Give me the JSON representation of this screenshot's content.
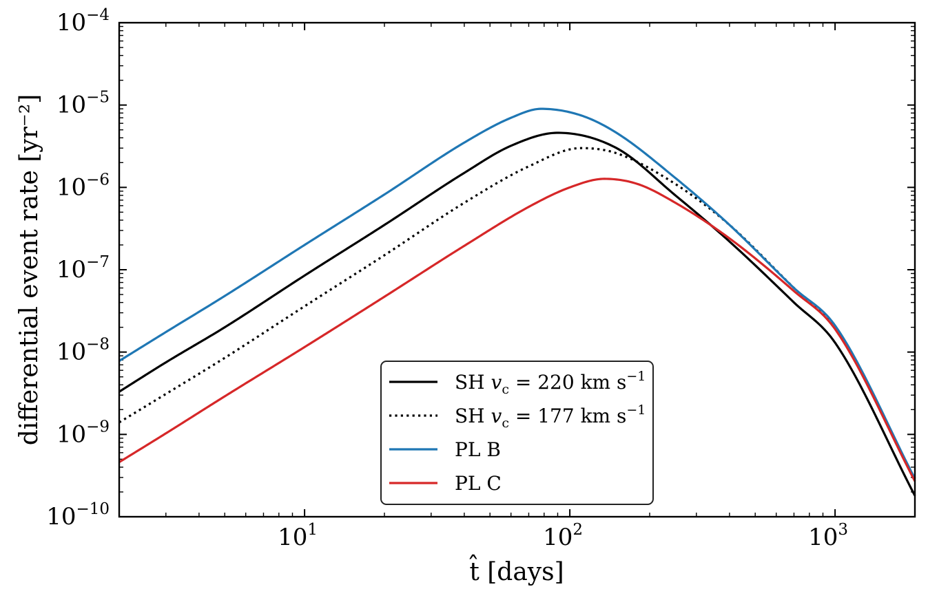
{
  "chart_data": {
    "type": "line",
    "title": "",
    "xlabel": "t̂ [days]",
    "ylabel": "differential event rate [yr⁻²]",
    "x_scale": "log",
    "y_scale": "log",
    "xlim": [
      2,
      2000
    ],
    "ylim": [
      1e-10,
      0.0001
    ],
    "grid": false,
    "legend_position": "bottom-center",
    "x_ticks": [
      {
        "base": "10",
        "exp": "1",
        "value": 10
      },
      {
        "base": "10",
        "exp": "2",
        "value": 100
      },
      {
        "base": "10",
        "exp": "3",
        "value": 1000
      }
    ],
    "y_ticks": [
      {
        "base": "10",
        "exp": "−4",
        "value": 0.0001
      },
      {
        "base": "10",
        "exp": "−5",
        "value": 1e-05
      },
      {
        "base": "10",
        "exp": "−6",
        "value": 1e-06
      },
      {
        "base": "10",
        "exp": "−7",
        "value": 1e-07
      },
      {
        "base": "10",
        "exp": "−8",
        "value": 1e-08
      },
      {
        "base": "10",
        "exp": "−9",
        "value": 1e-09
      },
      {
        "base": "10",
        "exp": "−10",
        "value": 1e-10
      }
    ],
    "series": [
      {
        "name": "SH v_c = 220 km s^-1",
        "color": "#000000",
        "dash": "solid",
        "x": [
          2,
          3,
          5,
          10,
          20,
          40,
          60,
          90,
          150,
          250,
          400,
          700,
          1000,
          2000
        ],
        "y": [
          3.3e-09,
          7.5e-09,
          2e-08,
          8.5e-08,
          3.5e-07,
          1.5e-06,
          3.2e-06,
          4.6e-06,
          3e-06,
          8e-07,
          2.2e-07,
          4e-08,
          1.3e-08,
          1.8e-10
        ]
      },
      {
        "name": "SH v_c = 177 km s^-1",
        "color": "#000000",
        "dash": "dotted",
        "x": [
          2,
          3,
          5,
          10,
          20,
          40,
          70,
          110,
          150,
          250,
          400,
          700,
          1000,
          2000
        ],
        "y": [
          1.4e-09,
          3.1e-09,
          8.5e-09,
          3.6e-08,
          1.5e-07,
          6.5e-07,
          1.8e-06,
          3e-06,
          2.6e-06,
          1.1e-06,
          3.5e-07,
          6e-08,
          2e-08,
          2.8e-10
        ]
      },
      {
        "name": "PL B",
        "color": "#1f77b4",
        "dash": "solid",
        "x": [
          2,
          3,
          5,
          10,
          20,
          40,
          60,
          78,
          110,
          150,
          250,
          400,
          700,
          1000,
          2000
        ],
        "y": [
          7.8e-09,
          1.75e-08,
          4.8e-08,
          2e-07,
          8.2e-07,
          3.5e-06,
          7e-06,
          9e-06,
          7.5e-06,
          4.6e-06,
          1.3e-06,
          3.5e-07,
          6e-08,
          2.1e-08,
          2.9e-10
        ]
      },
      {
        "name": "PL C",
        "color": "#d62728",
        "dash": "solid",
        "x": [
          2,
          3,
          5,
          10,
          20,
          40,
          70,
          100,
          135,
          180,
          250,
          400,
          700,
          1000,
          2000
        ],
        "y": [
          4.6e-10,
          1.03e-09,
          2.9e-09,
          1.15e-08,
          4.7e-08,
          1.95e-07,
          5.8e-07,
          1e-06,
          1.27e-06,
          1.1e-06,
          6.5e-07,
          2.4e-07,
          5.5e-08,
          1.9e-08,
          2.7e-10
        ]
      }
    ],
    "legend": [
      {
        "base": "SH ",
        "var": "v",
        "sub": "c",
        "rest": " = 220 km s",
        "sup": "−1",
        "color": "#000000",
        "dash": "solid"
      },
      {
        "base": "SH ",
        "var": "v",
        "sub": "c",
        "rest": " = 177 km s",
        "sup": "−1",
        "color": "#000000",
        "dash": "dotted"
      },
      {
        "base": "PL B",
        "var": "",
        "sub": "",
        "rest": "",
        "sup": "",
        "color": "#1f77b4",
        "dash": "solid"
      },
      {
        "base": "PL C",
        "var": "",
        "sub": "",
        "rest": "",
        "sup": "",
        "color": "#d62728",
        "dash": "solid"
      }
    ]
  }
}
